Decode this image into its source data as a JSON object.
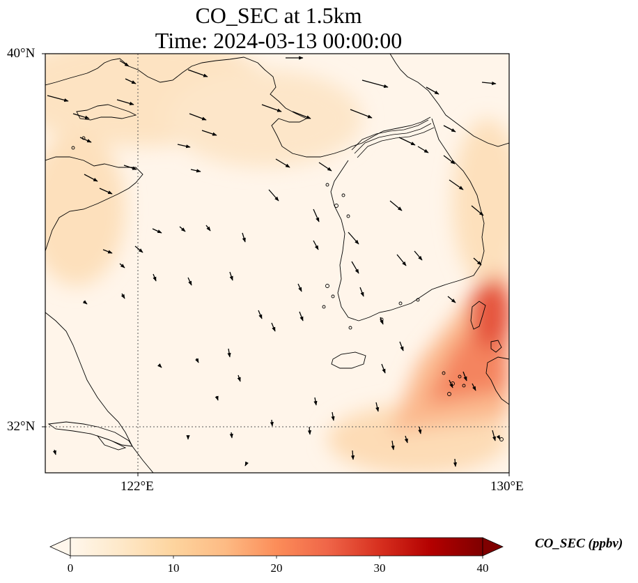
{
  "title_line1": "CO_SEC at 1.5km",
  "title_line2": "Time: 2024-03-13 00:00:00",
  "lat_labels": [
    "40°N",
    "32°N"
  ],
  "lon_labels": [
    "122°E",
    "130°E"
  ],
  "colorbar": {
    "label": "CO_SEC (ppbv)",
    "ticks": [
      "0",
      "10",
      "20",
      "30",
      "40"
    ],
    "min": 0,
    "max": 40,
    "colormap": "OrRd",
    "extend": "both"
  },
  "map": {
    "lon_range": [
      120,
      130
    ],
    "lat_range": [
      31,
      40
    ],
    "gridlines": "dotted",
    "feature": "coastlines",
    "vector_field": "wind arrows"
  }
}
